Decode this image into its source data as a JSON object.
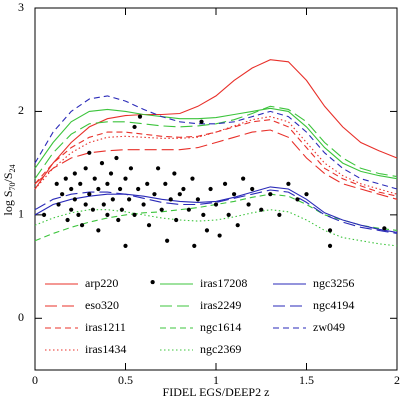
{
  "chart_data": {
    "type": "line",
    "xlabel": "FIDEL EGS/DEEP2 z",
    "ylabel": [
      "log S",
      "70",
      "/S",
      "24"
    ],
    "xlim": [
      0,
      2
    ],
    "xticks": [
      0,
      0.5,
      1,
      1.5,
      2
    ],
    "ylim": [
      -0.5,
      3
    ],
    "yticks": [
      0,
      1,
      2,
      3
    ],
    "legend": "lower center",
    "x": [
      0,
      0.1,
      0.2,
      0.3,
      0.4,
      0.5,
      0.6,
      0.7,
      0.8,
      0.9,
      1.0,
      1.1,
      1.2,
      1.3,
      1.4,
      1.5,
      1.6,
      1.7,
      1.8,
      1.9,
      2.0
    ],
    "series": [
      {
        "name": "arp220",
        "color": "#e8302a",
        "dash": "solid",
        "values": [
          1.25,
          1.5,
          1.7,
          1.85,
          1.93,
          1.96,
          1.97,
          1.97,
          1.98,
          2.05,
          2.15,
          2.3,
          2.42,
          2.5,
          2.48,
          2.3,
          2.05,
          1.85,
          1.7,
          1.62,
          1.55
        ]
      },
      {
        "name": "eso320",
        "color": "#e8302a",
        "dash": "long",
        "values": [
          1.3,
          1.45,
          1.55,
          1.6,
          1.62,
          1.63,
          1.63,
          1.63,
          1.63,
          1.65,
          1.7,
          1.75,
          1.8,
          1.82,
          1.75,
          1.55,
          1.4,
          1.3,
          1.25,
          1.2,
          1.15
        ]
      },
      {
        "name": "iras1211",
        "color": "#e8302a",
        "dash": "short",
        "values": [
          1.3,
          1.5,
          1.65,
          1.75,
          1.8,
          1.8,
          1.78,
          1.76,
          1.75,
          1.76,
          1.8,
          1.85,
          1.9,
          1.92,
          1.85,
          1.65,
          1.45,
          1.35,
          1.28,
          1.22,
          1.18
        ]
      },
      {
        "name": "iras1434",
        "color": "#e8302a",
        "dash": "dotted",
        "values": [
          1.25,
          1.45,
          1.6,
          1.7,
          1.75,
          1.76,
          1.75,
          1.74,
          1.74,
          1.75,
          1.8,
          1.86,
          1.92,
          1.95,
          1.9,
          1.7,
          1.5,
          1.38,
          1.3,
          1.25,
          1.2
        ]
      },
      {
        "name": "iras17208",
        "color": "#3cc43c",
        "dash": "solid",
        "values": [
          1.45,
          1.7,
          1.9,
          2.0,
          2.02,
          2.0,
          1.97,
          1.95,
          1.93,
          1.93,
          1.94,
          1.97,
          2.0,
          2.03,
          2.0,
          1.85,
          1.65,
          1.5,
          1.42,
          1.38,
          1.35
        ]
      },
      {
        "name": "iras2249",
        "color": "#3cc43c",
        "dash": "long",
        "values": [
          1.35,
          1.6,
          1.78,
          1.88,
          1.9,
          1.9,
          1.88,
          1.86,
          1.85,
          1.86,
          1.88,
          1.92,
          1.98,
          2.05,
          2.02,
          1.9,
          1.7,
          1.55,
          1.45,
          1.4,
          1.37
        ]
      },
      {
        "name": "ngc1614",
        "color": "#3cc43c",
        "dash": "short",
        "values": [
          0.75,
          0.82,
          0.88,
          0.93,
          0.97,
          1.0,
          1.02,
          1.03,
          1.05,
          1.07,
          1.1,
          1.13,
          1.17,
          1.2,
          1.18,
          1.1,
          1.0,
          0.95,
          0.9,
          0.87,
          0.85
        ]
      },
      {
        "name": "ngc2369",
        "color": "#3cc43c",
        "dash": "dotted",
        "values": [
          0.9,
          0.97,
          1.02,
          1.05,
          1.05,
          1.03,
          1.0,
          0.97,
          0.95,
          0.94,
          0.95,
          0.98,
          1.02,
          1.05,
          1.03,
          0.95,
          0.85,
          0.78,
          0.75,
          0.72,
          0.7
        ]
      },
      {
        "name": "ngc3256",
        "color": "#2a2ab8",
        "dash": "solid",
        "values": [
          1.0,
          1.1,
          1.15,
          1.18,
          1.2,
          1.2,
          1.18,
          1.15,
          1.13,
          1.12,
          1.13,
          1.17,
          1.22,
          1.27,
          1.25,
          1.15,
          1.02,
          0.95,
          0.9,
          0.86,
          0.83
        ]
      },
      {
        "name": "ngc4194",
        "color": "#2a2ab8",
        "dash": "long",
        "values": [
          1.05,
          1.15,
          1.2,
          1.22,
          1.22,
          1.2,
          1.16,
          1.12,
          1.1,
          1.1,
          1.12,
          1.16,
          1.2,
          1.24,
          1.22,
          1.12,
          1.0,
          0.93,
          0.88,
          0.85,
          0.82
        ]
      },
      {
        "name": "zw049",
        "color": "#2a2ab8",
        "dash": "short",
        "values": [
          1.5,
          1.8,
          2.0,
          2.12,
          2.15,
          2.1,
          2.02,
          1.95,
          1.9,
          1.88,
          1.88,
          1.9,
          1.95,
          2.0,
          1.95,
          1.8,
          1.6,
          1.45,
          1.35,
          1.3,
          1.25
        ]
      }
    ],
    "scatter": {
      "color": "#000000",
      "x": [
        0.05,
        0.12,
        0.13,
        0.15,
        0.17,
        0.18,
        0.2,
        0.2,
        0.22,
        0.22,
        0.24,
        0.25,
        0.26,
        0.28,
        0.28,
        0.3,
        0.3,
        0.32,
        0.33,
        0.35,
        0.35,
        0.37,
        0.38,
        0.4,
        0.4,
        0.42,
        0.43,
        0.45,
        0.46,
        0.47,
        0.48,
        0.5,
        0.5,
        0.52,
        0.53,
        0.55,
        0.55,
        0.57,
        0.58,
        0.6,
        0.62,
        0.63,
        0.65,
        0.66,
        0.68,
        0.7,
        0.72,
        0.73,
        0.75,
        0.77,
        0.78,
        0.8,
        0.82,
        0.85,
        0.87,
        0.88,
        0.9,
        0.92,
        0.93,
        0.95,
        0.97,
        1.0,
        1.02,
        1.05,
        1.07,
        1.1,
        1.12,
        1.15,
        1.18,
        1.2,
        1.25,
        1.3,
        1.35,
        1.4,
        1.45,
        1.5,
        1.63,
        1.63,
        1.93
      ],
      "y": [
        1.0,
        1.3,
        1.1,
        1.2,
        1.35,
        0.95,
        1.05,
        1.25,
        1.4,
        1.15,
        1.0,
        1.3,
        0.9,
        1.45,
        1.1,
        1.2,
        1.6,
        1.05,
        1.35,
        0.85,
        1.25,
        1.5,
        1.1,
        1.3,
        1.0,
        1.4,
        1.15,
        1.55,
        0.95,
        1.25,
        1.05,
        1.35,
        0.7,
        1.15,
        1.45,
        1.85,
        1.0,
        1.25,
        1.95,
        1.1,
        1.3,
        0.9,
        0.35,
        1.2,
        1.45,
        1.05,
        1.3,
        0.75,
        1.15,
        1.4,
        0.95,
        1.2,
        1.25,
        1.05,
        1.35,
        0.7,
        1.15,
        1.9,
        1.0,
        0.85,
        1.25,
        1.1,
        0.8,
        1.3,
        1.0,
        1.2,
        0.9,
        1.35,
        1.1,
        1.25,
        1.05,
        1.2,
        1.0,
        1.3,
        1.15,
        1.2,
        0.85,
        0.7,
        0.87
      ]
    }
  }
}
